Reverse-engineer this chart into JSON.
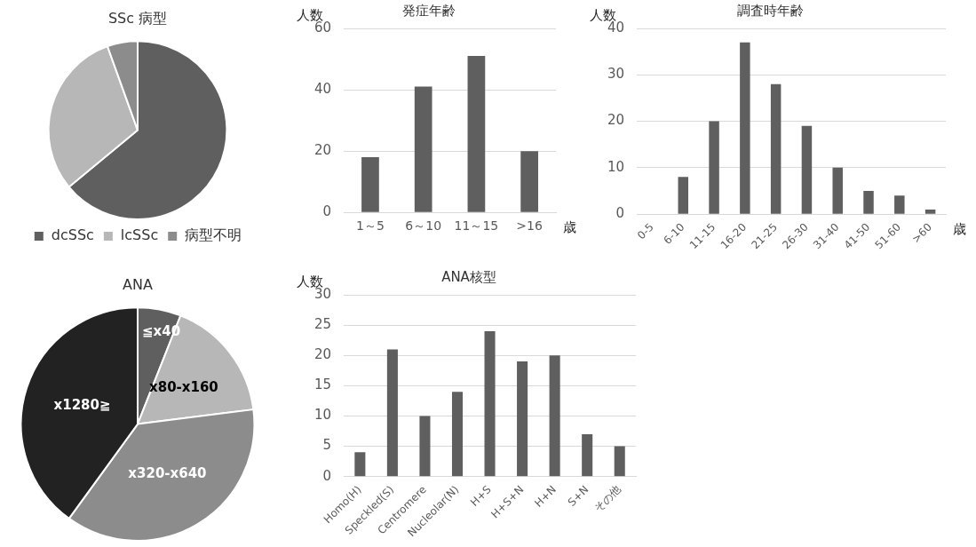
{
  "chart_data": [
    {
      "type": "pie",
      "title": "SSc 病型",
      "categories": [
        "dcSSc",
        "lcSSc",
        "病型不明"
      ],
      "values": [
        64,
        30.5,
        5.5
      ],
      "colors": [
        "#5f5f5f",
        "#b7b7b7",
        "#8c8c8c"
      ],
      "legend": "bottom"
    },
    {
      "type": "bar",
      "title": "発症年齢",
      "ylabel": "人数",
      "xlabel": "歳",
      "categories": [
        "1～5",
        "6～10",
        "11～15",
        ">16"
      ],
      "values": [
        18,
        41,
        51,
        20
      ],
      "color": "#5f5f5f",
      "ylim": [
        0,
        60
      ],
      "yticks": [
        0,
        20,
        40,
        60
      ],
      "grid": "y"
    },
    {
      "type": "bar",
      "title": "調査時年齢",
      "ylabel": "人数",
      "xlabel": "歳",
      "categories": [
        "0-5",
        "6-10",
        "11-15",
        "16-20",
        "21-25",
        "26-30",
        "31-40",
        "41-50",
        "51-60",
        ">60"
      ],
      "values": [
        0,
        8,
        20,
        37,
        28,
        19,
        10,
        5,
        4,
        1
      ],
      "color": "#5f5f5f",
      "ylim": [
        0,
        40
      ],
      "yticks": [
        0,
        10,
        20,
        30,
        40
      ],
      "grid": "y"
    },
    {
      "type": "pie",
      "title": "ANA",
      "categories": [
        "≦x40",
        "x80-x160",
        "x320-x640",
        "x1280≧"
      ],
      "values": [
        6,
        17,
        37,
        40
      ],
      "colors": [
        "#5f5f5f",
        "#b7b7b7",
        "#8c8c8c",
        "#222222"
      ],
      "legend": false
    },
    {
      "type": "bar",
      "title": "ANA核型",
      "ylabel": "人数",
      "categories": [
        "Homo(H)",
        "Speckled(S)",
        "Centromere",
        "Nucleolar(N)",
        "H+S",
        "H+S+N",
        "H+N",
        "S+N",
        "その他"
      ],
      "values": [
        4,
        21,
        10,
        14,
        24,
        19,
        20,
        7,
        5
      ],
      "color": "#5f5f5f",
      "ylim": [
        0,
        30
      ],
      "yticks": [
        0,
        5,
        10,
        15,
        20,
        25,
        30
      ],
      "grid": "y"
    }
  ]
}
